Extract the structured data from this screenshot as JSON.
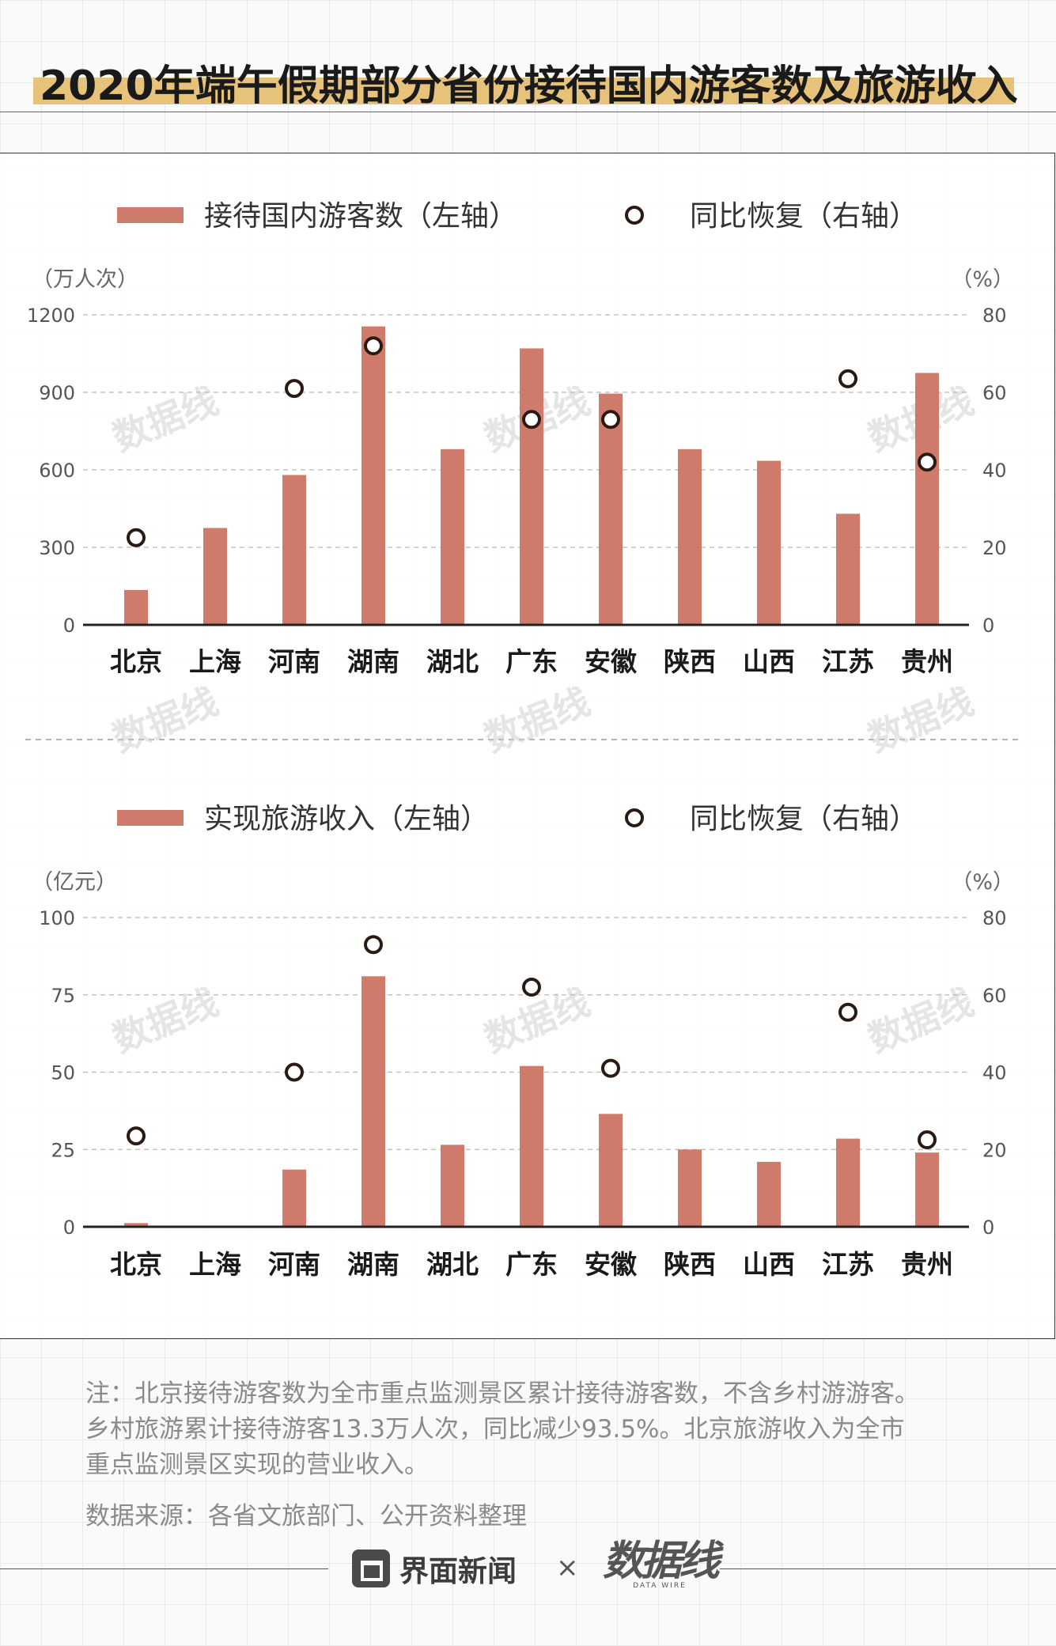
{
  "title": "2020年端午假期部分省份接待国内游客数及旅游收入",
  "colors": {
    "bar": "#cf7b6b",
    "point_stroke": "#2b1a14",
    "grid": "#b9b9b9",
    "axis": "#222222",
    "title_band": "#e7c27a"
  },
  "watermark": "数据线 DATA WIRE",
  "chart_data": [
    {
      "type": "bar",
      "legend_bar": "接待国内游客数（左轴）",
      "legend_point": "同比恢复（右轴）",
      "left_unit": "（万人次）",
      "right_unit": "（%）",
      "categories": [
        "北京",
        "上海",
        "河南",
        "湖南",
        "湖北",
        "广东",
        "安徽",
        "陕西",
        "山西",
        "江苏",
        "贵州"
      ],
      "left_ticks": [
        "1200",
        "900",
        "600",
        "300",
        "0"
      ],
      "right_ticks": [
        "80",
        "60",
        "40",
        "20",
        "0"
      ],
      "ylim_left": [
        0,
        1200
      ],
      "ylim_right": [
        0,
        80
      ],
      "bar_values": [
        135,
        375,
        580,
        1155,
        680,
        1070,
        895,
        680,
        635,
        430,
        975
      ],
      "point_values": [
        22.5,
        null,
        61,
        null,
        null,
        53,
        53,
        null,
        null,
        63.5,
        42
      ],
      "point_values_extra": {
        "湖南": 72
      },
      "grid": true,
      "legend_placement": "top"
    },
    {
      "type": "bar",
      "legend_bar": "实现旅游收入（左轴）",
      "legend_point": "同比恢复（右轴）",
      "left_unit": "（亿元）",
      "right_unit": "（%）",
      "categories": [
        "北京",
        "上海",
        "河南",
        "湖南",
        "湖北",
        "广东",
        "安徽",
        "陕西",
        "山西",
        "江苏",
        "贵州"
      ],
      "left_ticks": [
        "100",
        "75",
        "50",
        "25",
        "0"
      ],
      "right_ticks": [
        "80",
        "60",
        "40",
        "20",
        "0"
      ],
      "ylim_left": [
        0,
        100
      ],
      "ylim_right": [
        0,
        80
      ],
      "bar_values": [
        1.2,
        null,
        18.5,
        81,
        26.5,
        52,
        36.5,
        25,
        21,
        28.5,
        24
      ],
      "point_values": [
        23.5,
        null,
        40,
        73,
        null,
        62,
        41,
        null,
        null,
        55.5,
        22.5
      ],
      "grid": true,
      "legend_placement": "top"
    }
  ],
  "notes": {
    "line1": "注：北京接待游客数为全市重点监测景区累计接待游客数，不含乡村游游客。",
    "line2": "乡村旅游累计接待游客13.3万人次，同比减少93.5%。北京旅游收入为全市",
    "line3": "重点监测景区实现的营业收入。",
    "source": "数据来源：各省文旅部门、公开资料整理"
  },
  "footer": {
    "brand": "界面新闻",
    "cross": "×",
    "brand2": "数据线",
    "brand2_sub": "DATA WIRE"
  }
}
